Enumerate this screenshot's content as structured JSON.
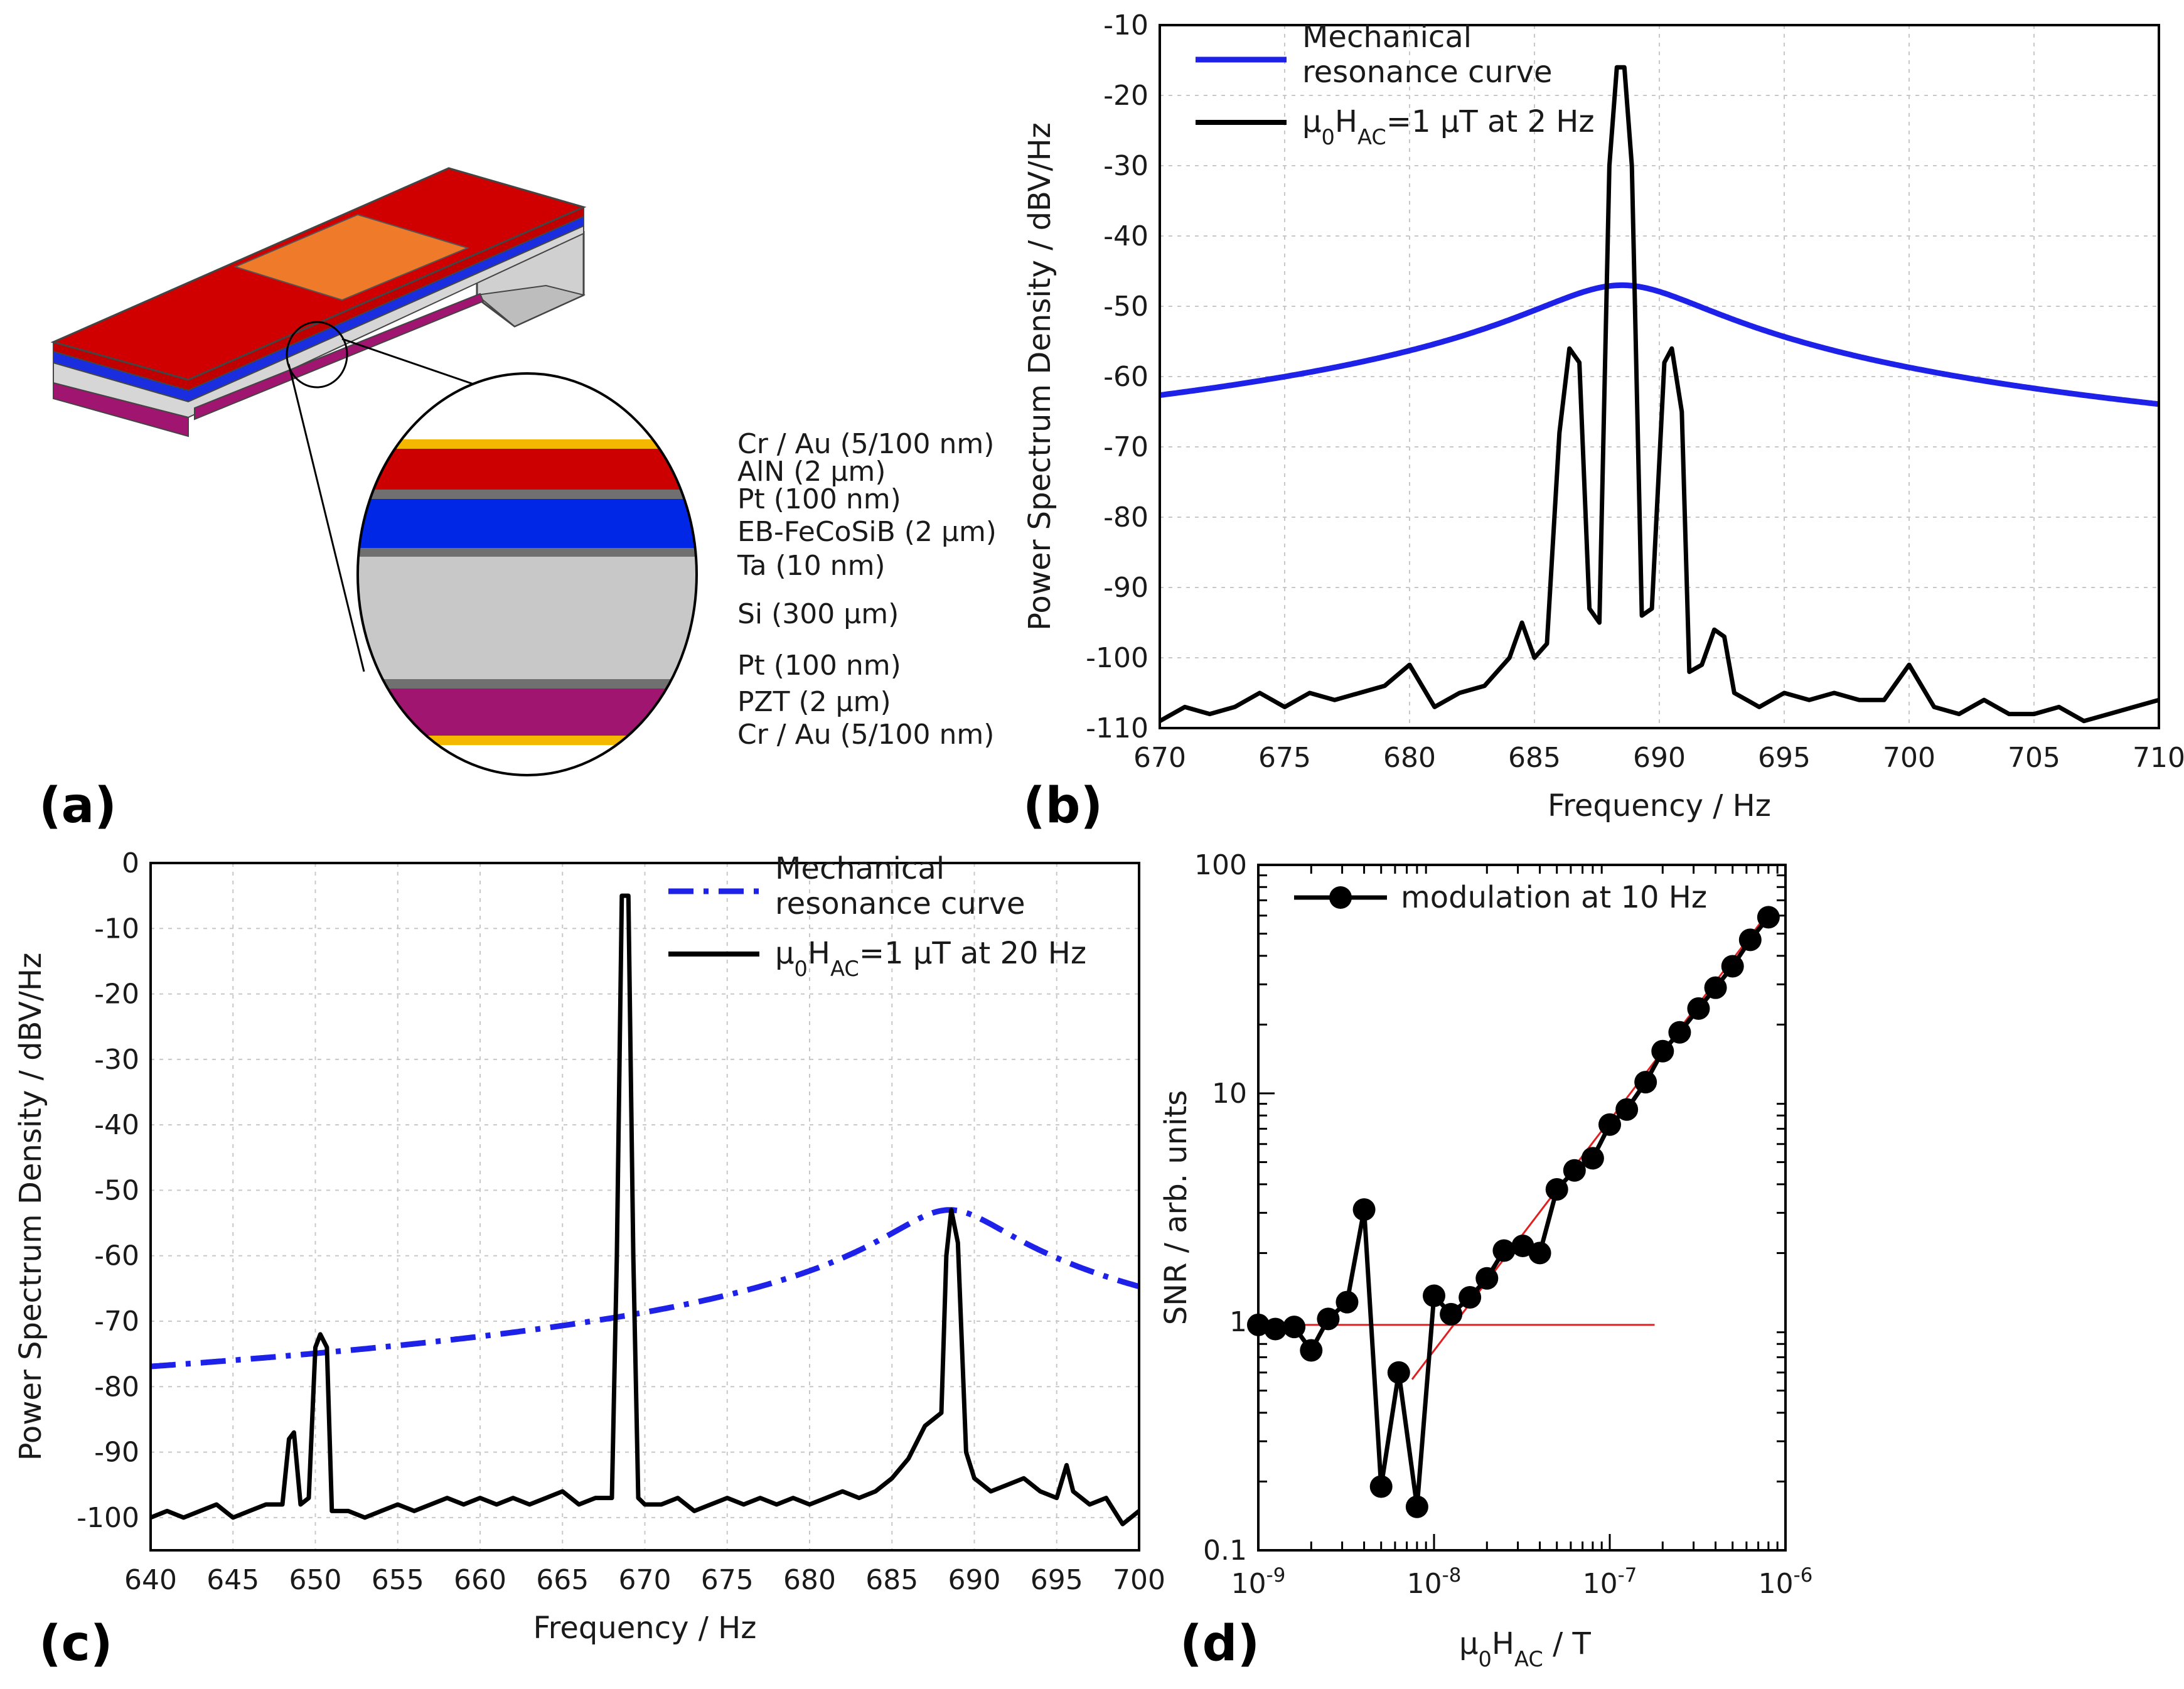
{
  "panel_labels": [
    "(a)",
    "(b)",
    "(c)",
    "(d)"
  ],
  "layers": [
    "Cr / Au (5/100 nm)",
    "AlN (2 µm)",
    "Pt (100 nm)",
    "EB-FeCoSiB (2 µm)",
    "Ta (10 nm)",
    "Si (300 µm)",
    "Pt (100 nm)",
    "PZT (2 µm)",
    "Cr / Au (5/100 nm)"
  ],
  "colors": {
    "au": "#f5b800",
    "aln": "#cc0000",
    "pt": "#707070",
    "fecosib": "#0026e6",
    "si": "#c8c8c8",
    "pzt": "#a01570",
    "electrode": "#ef7a2a",
    "blue_curve": "#1e22e8",
    "black_curve": "#000000",
    "fit_line": "#e02020"
  },
  "chart_data": [
    {
      "id": "b",
      "type": "line",
      "xlabel": "Frequency / Hz",
      "ylabel": "Power Spectrum Density / dBV/Hz",
      "xlim": [
        670,
        710
      ],
      "ylim": [
        -110,
        -10
      ],
      "xticks": [
        670,
        675,
        680,
        685,
        690,
        695,
        700,
        705,
        710
      ],
      "yticks": [
        -110,
        -100,
        -90,
        -80,
        -70,
        -60,
        -50,
        -40,
        -30,
        -20,
        -10
      ],
      "grid": true,
      "legend_position": "top-left",
      "series": [
        {
          "name_line1": "Mechanical",
          "name_line2": "resonance curve",
          "style": "solid",
          "color": "#1e22e8",
          "model": "lorentzian",
          "f0": 688.5,
          "peak": -47,
          "baseline": -110
        },
        {
          "name_base": "µ",
          "name_sub1": "0",
          "name_mid": "H",
          "name_sub2": "AC",
          "name_tail": "=1 µT at 2 Hz",
          "style": "solid",
          "color": "#000000",
          "points": [
            [
              670,
              -109
            ],
            [
              671,
              -107
            ],
            [
              672,
              -108
            ],
            [
              673,
              -107
            ],
            [
              674,
              -105
            ],
            [
              675,
              -107
            ],
            [
              676,
              -105
            ],
            [
              677,
              -106
            ],
            [
              678,
              -105
            ],
            [
              679,
              -104
            ],
            [
              680,
              -101
            ],
            [
              680.5,
              -104
            ],
            [
              681,
              -107
            ],
            [
              682,
              -105
            ],
            [
              683,
              -104
            ],
            [
              684,
              -100
            ],
            [
              684.5,
              -95
            ],
            [
              685,
              -100
            ],
            [
              685.5,
              -98
            ],
            [
              686,
              -68
            ],
            [
              686.4,
              -56
            ],
            [
              686.8,
              -58
            ],
            [
              687.2,
              -93
            ],
            [
              687.6,
              -95
            ],
            [
              688,
              -30
            ],
            [
              688.3,
              -16
            ],
            [
              688.6,
              -16
            ],
            [
              688.9,
              -30
            ],
            [
              689.3,
              -94
            ],
            [
              689.7,
              -93
            ],
            [
              690.2,
              -58
            ],
            [
              690.5,
              -56
            ],
            [
              690.9,
              -65
            ],
            [
              691.2,
              -102
            ],
            [
              691.7,
              -101
            ],
            [
              692.2,
              -96
            ],
            [
              692.6,
              -97
            ],
            [
              693,
              -105
            ],
            [
              694,
              -107
            ],
            [
              695,
              -105
            ],
            [
              696,
              -106
            ],
            [
              697,
              -105
            ],
            [
              698,
              -106
            ],
            [
              699,
              -106
            ],
            [
              700,
              -101
            ],
            [
              700.5,
              -104
            ],
            [
              701,
              -107
            ],
            [
              702,
              -108
            ],
            [
              703,
              -106
            ],
            [
              704,
              -108
            ],
            [
              705,
              -108
            ],
            [
              706,
              -107
            ],
            [
              707,
              -109
            ],
            [
              708,
              -108
            ],
            [
              709,
              -107
            ],
            [
              710,
              -106
            ]
          ]
        }
      ]
    },
    {
      "id": "c",
      "type": "line",
      "xlabel": "Frequency / Hz",
      "ylabel": "Power Spectrum Density / dBV/Hz",
      "xlim": [
        640,
        700
      ],
      "ylim": [
        -105,
        0
      ],
      "xticks": [
        640,
        645,
        650,
        655,
        660,
        665,
        670,
        675,
        680,
        685,
        690,
        695,
        700
      ],
      "yticks": [
        0,
        -10,
        -20,
        -30,
        -40,
        -50,
        -60,
        -70,
        -80,
        -90,
        -100
      ],
      "grid": true,
      "legend_position": "top-right",
      "series": [
        {
          "name_line1": "Mechanical",
          "name_line2": "resonance curve",
          "style": "dash-dot",
          "color": "#1e22e8",
          "model": "lorentzian",
          "f0": 688.5,
          "peak": -53,
          "baseline": -95
        },
        {
          "name_base": "µ",
          "name_sub1": "0",
          "name_mid": "H",
          "name_sub2": "AC",
          "name_tail": "=1 µT at 20 Hz",
          "style": "solid",
          "color": "#000000",
          "points": [
            [
              640,
              -100
            ],
            [
              641,
              -99
            ],
            [
              642,
              -100
            ],
            [
              643,
              -99
            ],
            [
              644,
              -98
            ],
            [
              645,
              -100
            ],
            [
              646,
              -99
            ],
            [
              647,
              -98
            ],
            [
              648,
              -98
            ],
            [
              648.4,
              -88
            ],
            [
              648.7,
              -87
            ],
            [
              649.1,
              -98
            ],
            [
              649.6,
              -97
            ],
            [
              650,
              -74
            ],
            [
              650.3,
              -72
            ],
            [
              650.7,
              -74
            ],
            [
              651,
              -99
            ],
            [
              652,
              -99
            ],
            [
              653,
              -100
            ],
            [
              654,
              -99
            ],
            [
              655,
              -98
            ],
            [
              656,
              -99
            ],
            [
              657,
              -98
            ],
            [
              658,
              -97
            ],
            [
              659,
              -98
            ],
            [
              660,
              -97
            ],
            [
              661,
              -98
            ],
            [
              662,
              -97
            ],
            [
              663,
              -98
            ],
            [
              664,
              -97
            ],
            [
              665,
              -96
            ],
            [
              666,
              -98
            ],
            [
              667,
              -97
            ],
            [
              668,
              -97
            ],
            [
              668.3,
              -60
            ],
            [
              668.6,
              -5
            ],
            [
              669,
              -5
            ],
            [
              669.3,
              -60
            ],
            [
              669.6,
              -97
            ],
            [
              670,
              -98
            ],
            [
              671,
              -98
            ],
            [
              672,
              -97
            ],
            [
              673,
              -99
            ],
            [
              674,
              -98
            ],
            [
              675,
              -97
            ],
            [
              676,
              -98
            ],
            [
              677,
              -97
            ],
            [
              678,
              -98
            ],
            [
              679,
              -97
            ],
            [
              680,
              -98
            ],
            [
              681,
              -97
            ],
            [
              682,
              -96
            ],
            [
              683,
              -97
            ],
            [
              684,
              -96
            ],
            [
              685,
              -94
            ],
            [
              686,
              -91
            ],
            [
              687,
              -86
            ],
            [
              688,
              -84
            ],
            [
              688.3,
              -60
            ],
            [
              688.6,
              -53
            ],
            [
              689,
              -58
            ],
            [
              689.5,
              -90
            ],
            [
              690,
              -94
            ],
            [
              691,
              -96
            ],
            [
              692,
              -95
            ],
            [
              693,
              -94
            ],
            [
              694,
              -96
            ],
            [
              695,
              -97
            ],
            [
              695.6,
              -92
            ],
            [
              696,
              -96
            ],
            [
              697,
              -98
            ],
            [
              698,
              -97
            ],
            [
              699,
              -101
            ],
            [
              700,
              -99
            ]
          ]
        }
      ]
    },
    {
      "id": "d",
      "type": "scatter",
      "xlabel_base": "µ",
      "xlabel_sub1": "0",
      "xlabel_mid": "H",
      "xlabel_sub2": "AC",
      "xlabel_tail": " / T",
      "ylabel": "SNR / arb. units",
      "xscale": "log",
      "yscale": "log",
      "xlim": [
        1e-09,
        1e-06
      ],
      "ylim": [
        0.1,
        100
      ],
      "xtick_bases": [
        "10",
        "10",
        "10",
        "10"
      ],
      "xtick_exps": [
        "-9",
        "-8",
        "-7",
        "-6"
      ],
      "yticks": [
        "0.1",
        "1",
        "10",
        "100"
      ],
      "legend_position": "top-left",
      "series": [
        {
          "name": "modulation at 10 Hz",
          "style": "line-with-markers",
          "color": "#000000",
          "points": [
            [
              1e-09,
              0.97
            ],
            [
              1.25e-09,
              0.93
            ],
            [
              1.6e-09,
              0.95
            ],
            [
              2e-09,
              0.75
            ],
            [
              2.5e-09,
              1.03
            ],
            [
              3.2e-09,
              1.22
            ],
            [
              4e-09,
              3.1
            ],
            [
              5e-09,
              0.19
            ],
            [
              6.3e-09,
              0.6
            ],
            [
              8e-09,
              0.155
            ],
            [
              1e-08,
              1.3
            ],
            [
              1.25e-08,
              1.08
            ],
            [
              1.6e-08,
              1.28
            ],
            [
              2e-08,
              1.55
            ],
            [
              2.5e-08,
              2.05
            ],
            [
              3.2e-08,
              2.15
            ],
            [
              4e-08,
              2.0
            ],
            [
              5e-08,
              3.8
            ],
            [
              6.3e-08,
              4.6
            ],
            [
              8e-08,
              5.2
            ],
            [
              1e-07,
              7.3
            ],
            [
              1.25e-07,
              8.5
            ],
            [
              1.6e-07,
              11.2
            ],
            [
              2e-07,
              15.3
            ],
            [
              2.5e-07,
              18.5
            ],
            [
              3.2e-07,
              23.5
            ],
            [
              4e-07,
              29
            ],
            [
              5e-07,
              36
            ],
            [
              6.3e-07,
              47
            ],
            [
              8e-07,
              59
            ]
          ]
        }
      ],
      "fit_lines": [
        {
          "color": "#e02020",
          "points": [
            [
              1e-09,
              0.97
            ],
            [
              1.8e-07,
              0.97
            ]
          ]
        },
        {
          "color": "#e02020",
          "points": [
            [
              7.5e-09,
              0.56
            ],
            [
              8e-07,
              62
            ]
          ]
        }
      ]
    }
  ]
}
